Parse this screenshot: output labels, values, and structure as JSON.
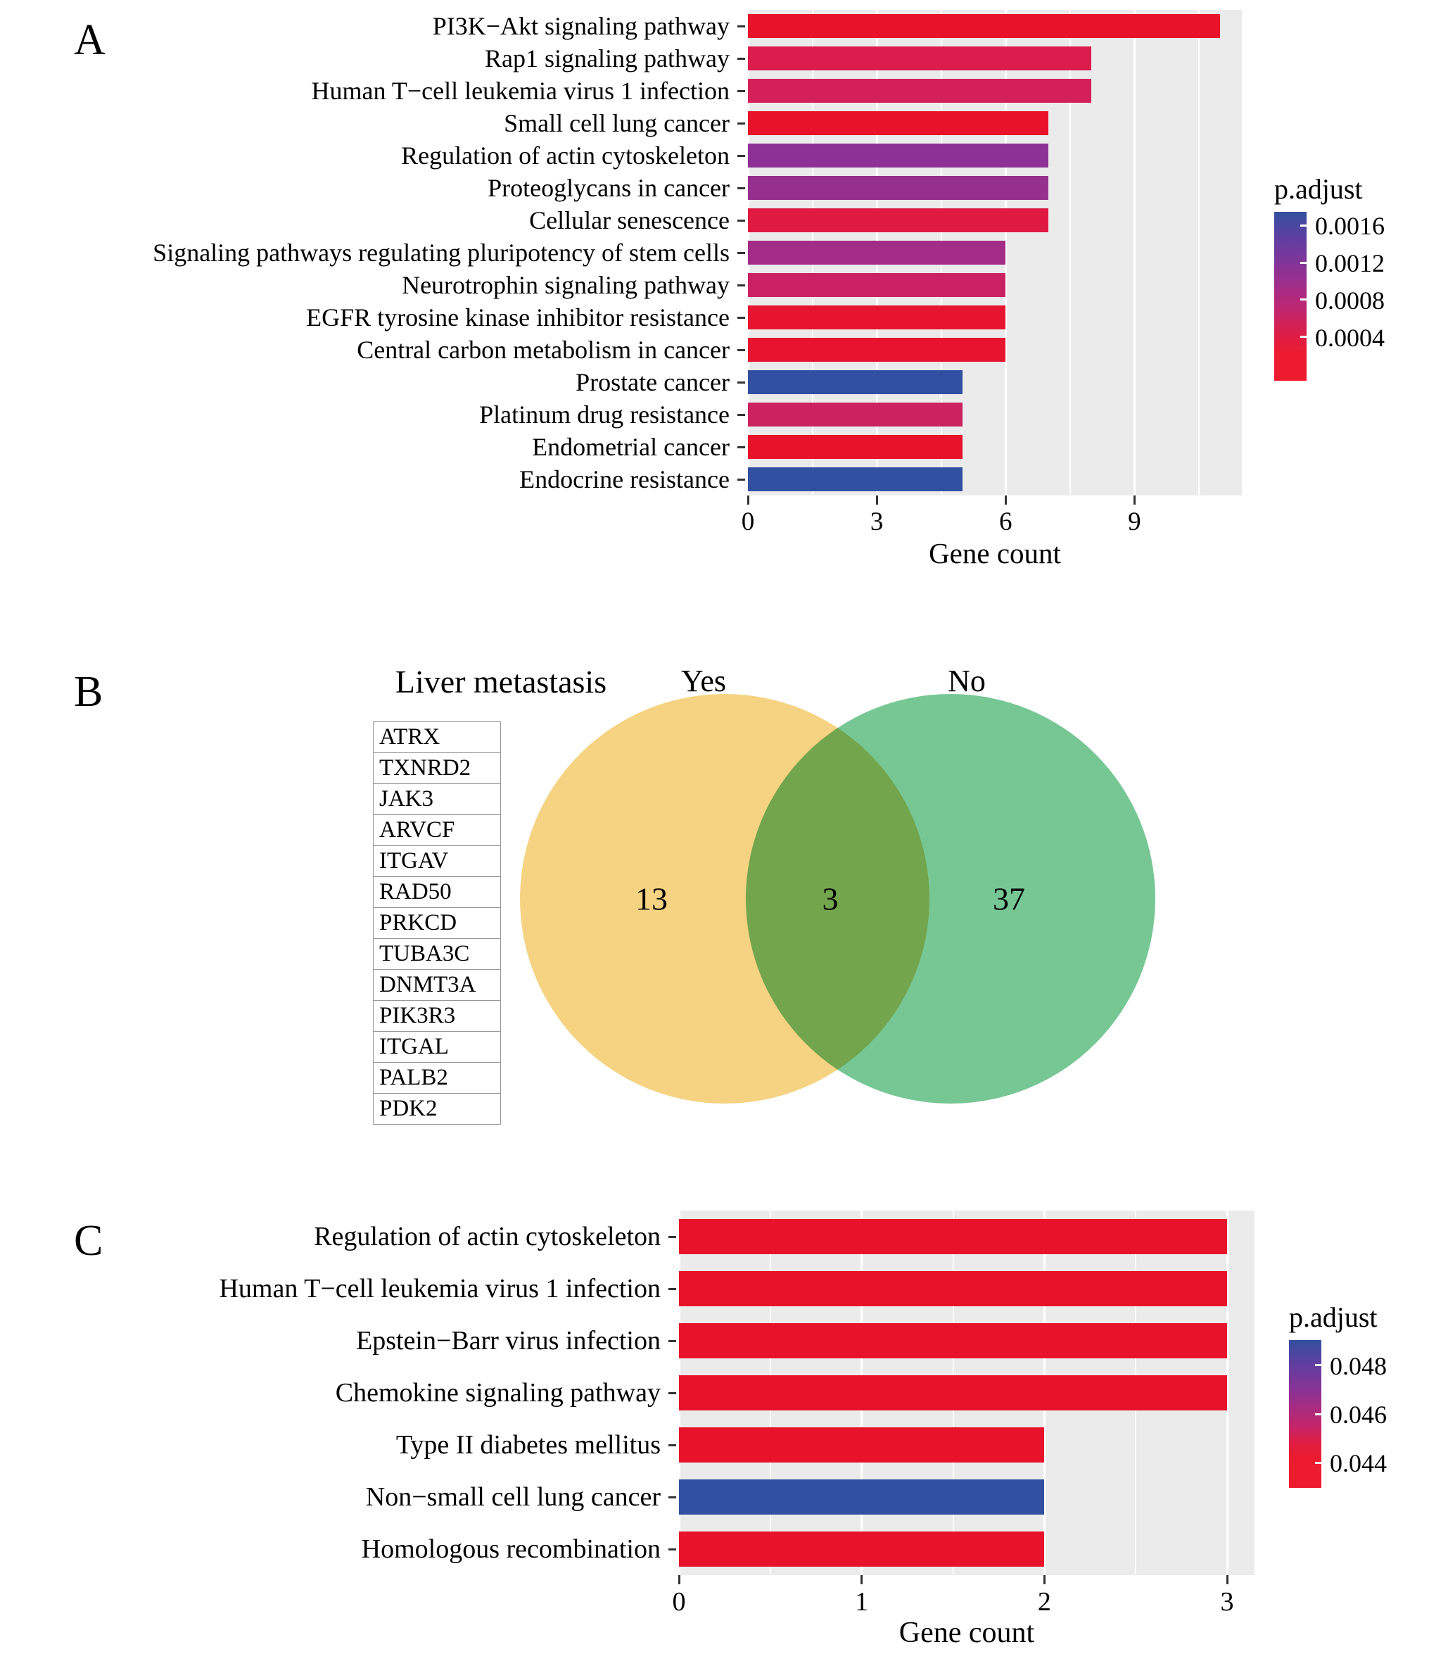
{
  "labels": {
    "panel_a_letter": "A",
    "panel_b_letter": "B",
    "panel_c_letter": "C"
  },
  "chart_data": [
    {
      "id": "A",
      "type": "bar",
      "orientation": "horizontal",
      "title": "",
      "xlabel": "Gene count",
      "xlim": [
        0,
        11.5
      ],
      "xticks": [
        0,
        3,
        6,
        9
      ],
      "minor_ticks": [
        1.5,
        4.5,
        7.5,
        10.5
      ],
      "categories": [
        "PI3K−Akt signaling pathway",
        "Rap1 signaling pathway",
        "Human T−cell leukemia virus 1 infection",
        "Small cell lung cancer",
        "Regulation of actin cytoskeleton",
        "Proteoglycans in cancer",
        "Cellular senescence",
        "Signaling pathways regulating pluripotency of stem cells",
        "Neurotrophin signaling pathway",
        "EGFR tyrosine kinase inhibitor resistance",
        "Central carbon metabolism in cancer",
        "Prostate cancer",
        "Platinum drug resistance",
        "Endometrial cancer",
        "Endocrine resistance"
      ],
      "values": [
        11,
        8,
        8,
        7,
        7,
        7,
        7,
        6,
        6,
        6,
        6,
        5,
        5,
        5,
        5
      ],
      "bar_colors": [
        "#E8132B",
        "#DB1C4D",
        "#D32058",
        "#E8132B",
        "#8E3195",
        "#95308E",
        "#E01940",
        "#A32C86",
        "#CB2264",
        "#E6142F",
        "#E6142F",
        "#3150A2",
        "#CD2260",
        "#E8132B",
        "#3150A2"
      ],
      "legend": {
        "title": "p.adjust",
        "tick_labels": [
          "0.0016",
          "0.0012",
          "0.0008",
          "0.0004"
        ],
        "gradient_stops": [
          [
            "#33509F",
            0
          ],
          [
            "#5F3EA0",
            16
          ],
          [
            "#8F3193",
            36
          ],
          [
            "#BC2774",
            56
          ],
          [
            "#DF1D44",
            74
          ],
          [
            "#EC1B2D",
            84
          ],
          [
            "#EC1B2D",
            100
          ]
        ]
      }
    },
    {
      "id": "B",
      "type": "venn",
      "title": "Liver metastasis",
      "sets": [
        {
          "label": "Yes",
          "unique_count": "13",
          "color": "#F6D382"
        },
        {
          "label": "No",
          "unique_count": "37",
          "color": "#77C795"
        }
      ],
      "intersection_count": "3",
      "gene_list": [
        "ATRX",
        "TXNRD2",
        "JAK3",
        "ARVCF",
        "ITGAV",
        "RAD50",
        "PRKCD",
        "TUBA3C",
        "DNMT3A",
        "PIK3R3",
        "ITGAL",
        "PALB2",
        "PDK2"
      ]
    },
    {
      "id": "C",
      "type": "bar",
      "orientation": "horizontal",
      "title": "",
      "xlabel": "Gene count",
      "xlim": [
        0,
        3.15
      ],
      "xticks": [
        0,
        1,
        2,
        3
      ],
      "minor_ticks": [
        0.5,
        1.5,
        2.5
      ],
      "categories": [
        "Regulation of actin cytoskeleton",
        "Human T−cell leukemia virus 1 infection",
        "Epstein−Barr virus infection",
        "Chemokine signaling pathway",
        "Type II diabetes mellitus",
        "Non−small cell lung cancer",
        "Homologous recombination"
      ],
      "values": [
        3,
        3,
        3,
        3,
        2,
        2,
        2
      ],
      "bar_colors": [
        "#E8132B",
        "#E8132B",
        "#E8132B",
        "#E8132B",
        "#E8132B",
        "#3150A2",
        "#E8132B"
      ],
      "legend": {
        "title": "p.adjust",
        "tick_labels": [
          "0.048",
          "0.046",
          "0.044"
        ],
        "gradient_stops": [
          [
            "#33509F",
            0
          ],
          [
            "#5A40A0",
            14
          ],
          [
            "#8F3193",
            36
          ],
          [
            "#C02670",
            56
          ],
          [
            "#E01D43",
            70
          ],
          [
            "#EC1B2D",
            80
          ],
          [
            "#EC1B2D",
            100
          ]
        ]
      }
    }
  ]
}
